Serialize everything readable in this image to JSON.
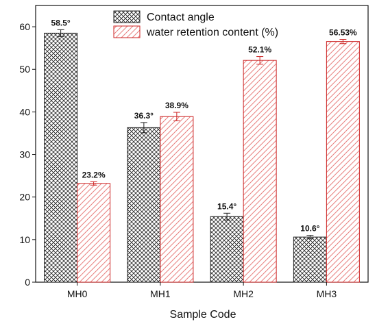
{
  "chart_data": {
    "type": "bar",
    "xlabel": "Sample Code",
    "ylabel": "",
    "ylim": [
      0,
      65
    ],
    "yticks": [
      0,
      10,
      20,
      30,
      40,
      50,
      60
    ],
    "categories": [
      "MH0",
      "MH1",
      "MH2",
      "MH3"
    ],
    "legend_position": "top-center",
    "grid": false,
    "series": [
      {
        "name": "Contact angle",
        "values": [
          58.5,
          36.3,
          15.4,
          10.6
        ],
        "errors": [
          0.8,
          1.2,
          0.8,
          0.4
        ],
        "labels": [
          "58.5°",
          "36.3°",
          "15.4°",
          "10.6°"
        ],
        "pattern": "crosshatch",
        "color": "#222222",
        "fill": "#ffffff"
      },
      {
        "name": "water retention content (%)",
        "values": [
          23.2,
          38.9,
          52.1,
          56.53
        ],
        "errors": [
          0.4,
          1.0,
          0.9,
          0.5
        ],
        "labels": [
          "23.2%",
          "38.9%",
          "52.1%",
          "56.53%"
        ],
        "pattern": "diagonal",
        "color": "#e8807e",
        "fill": "#ffffff",
        "edge": "#cc2222"
      }
    ]
  }
}
